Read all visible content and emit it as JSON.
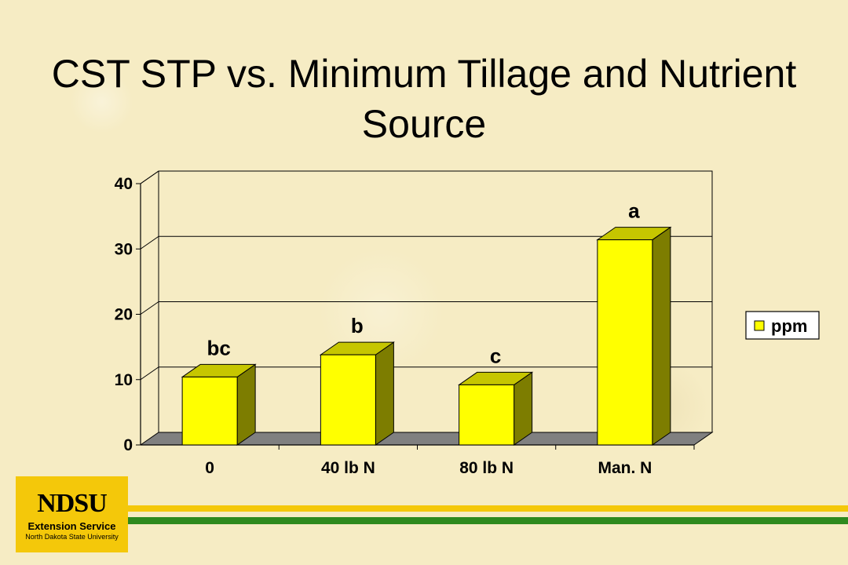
{
  "slide": {
    "title": "CST STP vs. Minimum Tillage and Nutrient Source"
  },
  "chart_data": {
    "type": "bar",
    "title": "",
    "xlabel": "",
    "ylabel": "",
    "categories": [
      "0",
      "40 lb N",
      "80 lb N",
      "Man. N"
    ],
    "series": [
      {
        "name": "ppm",
        "values": [
          10.4,
          13.8,
          9.2,
          31.4
        ]
      }
    ],
    "data_labels": [
      "bc",
      "b",
      "c",
      "a"
    ],
    "ylim": [
      0,
      40
    ],
    "yticks": [
      0,
      10,
      20,
      30,
      40
    ],
    "grid": true,
    "legend": "right",
    "three_d": true,
    "colors": {
      "bar_front": "#ffff00",
      "bar_side": "#7d7d00",
      "bar_top": "#c6c600",
      "floor": "#808080",
      "grid": "#000000"
    }
  },
  "logo": {
    "mark": "NDSU",
    "subtitle": "Extension Service",
    "university": "North Dakota State University",
    "colors": {
      "background": "#f4c80a",
      "stripe_yellow": "#f4c80a",
      "stripe_green": "#2e8a1e"
    }
  }
}
